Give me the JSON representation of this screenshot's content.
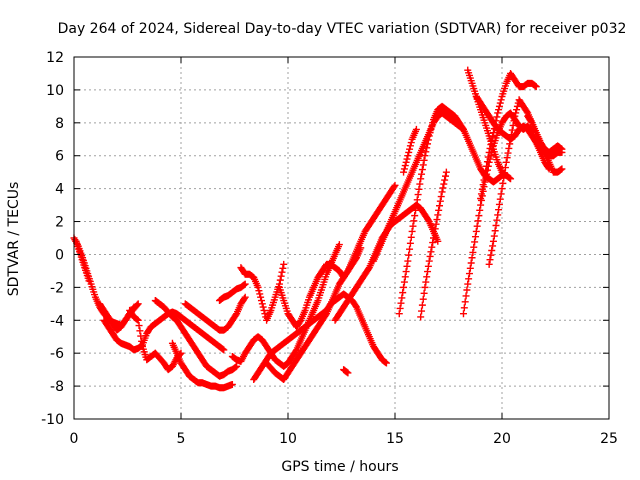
{
  "chart_data": {
    "type": "scatter",
    "title": "Day 264 of 2024, Sidereal Day-to-day VTEC variation (SDTVAR) for receiver p032",
    "xlabel": "GPS time / hours",
    "ylabel": "SDTVAR / TECUs",
    "xlim": [
      0,
      25
    ],
    "ylim": [
      -10,
      12
    ],
    "xticks": [
      "0",
      "5",
      "10",
      "15",
      "20",
      "25"
    ],
    "yticks": [
      "12",
      "10",
      "8",
      "6",
      "4",
      "2",
      "0",
      "-2",
      "-4",
      "-6",
      "-8",
      "-10"
    ],
    "grid": true,
    "marker": "+",
    "color": "#ff0000",
    "series": [
      {
        "x": [
          0.0,
          0.2,
          0.4,
          0.6,
          0.8,
          1.0,
          1.2,
          1.4,
          1.6,
          1.8,
          2.0,
          2.2,
          2.4,
          2.6,
          2.8
        ],
        "y": [
          1.0,
          0.5,
          -0.2,
          -1.0,
          -1.8,
          -2.6,
          -3.2,
          -3.6,
          -3.9,
          -4.1,
          -4.2,
          -4.3,
          -4.0,
          -3.6,
          -3.2
        ]
      },
      {
        "x": [
          1.2,
          1.4,
          1.6,
          1.8,
          2.0,
          2.2,
          2.4,
          2.6,
          2.8,
          3.0
        ],
        "y": [
          -3.0,
          -3.4,
          -3.8,
          -4.2,
          -4.6,
          -4.4,
          -4.0,
          -3.6,
          -3.3,
          -3.0
        ]
      },
      {
        "x": [
          0.1,
          0.3,
          0.5,
          0.7
        ],
        "y": [
          0.8,
          0.0,
          -0.8,
          -1.6
        ]
      },
      {
        "x": [
          1.4,
          1.6,
          1.8,
          2.0,
          2.2,
          2.4,
          2.6,
          2.8,
          3.0,
          3.2,
          3.4,
          3.6,
          3.8,
          4.0,
          4.2,
          4.4,
          4.6,
          4.8,
          5.0,
          5.2,
          5.4,
          5.6,
          5.8,
          6.0,
          6.2,
          6.4,
          6.6,
          6.8,
          7.0
        ],
        "y": [
          -4.0,
          -4.4,
          -4.8,
          -5.2,
          -5.4,
          -5.5,
          -5.6,
          -5.8,
          -5.7,
          -5.5,
          -4.8,
          -4.4,
          -4.2,
          -4.0,
          -3.8,
          -3.6,
          -3.5,
          -3.6,
          -3.8,
          -4.0,
          -4.2,
          -4.4,
          -4.6,
          -4.8,
          -5.0,
          -5.2,
          -5.4,
          -5.6,
          -5.8
        ]
      },
      {
        "x": [
          2.6,
          2.8,
          3.0,
          3.2,
          3.4,
          3.6,
          3.8,
          4.0,
          4.2,
          4.4,
          4.6,
          4.8,
          5.0
        ],
        "y": [
          -3.4,
          -3.8,
          -4.0,
          -5.6,
          -6.4,
          -6.2,
          -6.0,
          -6.3,
          -6.6,
          -7.0,
          -6.8,
          -6.3,
          -6.0
        ]
      },
      {
        "x": [
          3.8,
          4.0,
          4.2,
          4.4,
          4.6,
          4.8,
          5.0,
          5.2,
          5.4,
          5.6,
          5.8,
          6.0,
          6.2,
          6.4,
          6.6,
          6.8,
          7.0,
          7.2,
          7.4,
          7.6
        ],
        "y": [
          -2.8,
          -3.0,
          -3.2,
          -3.5,
          -3.8,
          -4.0,
          -4.4,
          -4.8,
          -5.2,
          -5.6,
          -6.0,
          -6.4,
          -6.8,
          -7.0,
          -7.2,
          -7.4,
          -7.3,
          -7.1,
          -7.0,
          -6.8
        ]
      },
      {
        "x": [
          4.6,
          4.8,
          5.0,
          5.2,
          5.4,
          5.6,
          5.8,
          6.0,
          6.2,
          6.4,
          6.6,
          6.8,
          7.0,
          7.2,
          7.4
        ],
        "y": [
          -5.4,
          -6.0,
          -6.6,
          -7.0,
          -7.4,
          -7.6,
          -7.8,
          -7.8,
          -7.9,
          -8.0,
          -8.0,
          -8.1,
          -8.1,
          -8.0,
          -7.9
        ]
      },
      {
        "x": [
          5.2,
          5.4,
          5.6,
          5.8,
          6.0,
          6.2,
          6.4,
          6.6,
          6.8,
          7.0,
          7.2,
          7.4,
          7.6,
          7.8,
          8.0
        ],
        "y": [
          -3.0,
          -3.2,
          -3.4,
          -3.6,
          -3.8,
          -4.0,
          -4.2,
          -4.4,
          -4.6,
          -4.6,
          -4.4,
          -4.0,
          -3.6,
          -3.0,
          -2.6
        ]
      },
      {
        "x": [
          6.8,
          7.0,
          7.2,
          7.4,
          7.6,
          7.8,
          8.0
        ],
        "y": [
          -2.8,
          -2.6,
          -2.5,
          -2.3,
          -2.1,
          -2.0,
          -1.8
        ]
      },
      {
        "x": [
          7.4,
          7.6,
          7.8,
          8.0,
          8.2,
          8.4,
          8.6,
          8.8,
          9.0,
          9.2,
          9.4,
          9.6,
          9.8,
          10.0,
          10.2,
          10.4,
          10.6,
          10.8,
          11.0,
          11.2,
          11.4,
          11.6,
          11.8,
          12.0,
          12.2,
          12.4
        ],
        "y": [
          -6.2,
          -6.4,
          -6.5,
          -6.0,
          -5.6,
          -5.2,
          -5.0,
          -5.2,
          -5.6,
          -6.0,
          -6.4,
          -6.6,
          -6.8,
          -6.6,
          -6.2,
          -5.8,
          -5.2,
          -4.6,
          -4.0,
          -3.4,
          -2.8,
          -2.0,
          -1.2,
          -0.6,
          0.0,
          0.6
        ]
      },
      {
        "x": [
          7.8,
          8.0,
          8.2,
          8.4,
          8.6,
          8.8,
          9.0,
          9.2,
          9.4,
          9.6,
          9.8
        ],
        "y": [
          -0.8,
          -1.2,
          -1.2,
          -1.4,
          -2.0,
          -3.0,
          -4.0,
          -3.4,
          -2.6,
          -1.8,
          -0.6
        ]
      },
      {
        "x": [
          8.4,
          8.6,
          8.8,
          9.0,
          9.2,
          9.4,
          9.6,
          9.8,
          10.0,
          10.2,
          10.4,
          10.6,
          10.8,
          11.0,
          11.2,
          11.4,
          11.6,
          11.8,
          12.0,
          12.2,
          12.4,
          12.6,
          12.8,
          13.0,
          13.2,
          13.4,
          13.6,
          13.8,
          14.0,
          14.2,
          14.4,
          14.6
        ],
        "y": [
          -7.6,
          -7.2,
          -6.8,
          -6.4,
          -6.0,
          -5.8,
          -5.6,
          -5.4,
          -5.2,
          -5.0,
          -4.8,
          -4.6,
          -4.4,
          -4.2,
          -4.0,
          -3.8,
          -3.6,
          -3.4,
          -3.0,
          -2.8,
          -2.6,
          -2.4,
          -2.6,
          -2.8,
          -3.2,
          -3.8,
          -4.4,
          -5.0,
          -5.6,
          -6.0,
          -6.4,
          -6.6
        ]
      },
      {
        "x": [
          9.0,
          9.2,
          9.4,
          9.6,
          9.8,
          10.0,
          10.2,
          10.4,
          10.6,
          10.8,
          11.0,
          11.2,
          11.4,
          11.6,
          11.8,
          12.0,
          12.2,
          12.4,
          12.6,
          12.8,
          13.0,
          13.2,
          13.4
        ],
        "y": [
          -6.6,
          -6.9,
          -7.2,
          -7.4,
          -7.6,
          -7.2,
          -6.8,
          -6.4,
          -6.0,
          -5.6,
          -5.2,
          -4.8,
          -4.4,
          -4.0,
          -3.6,
          -3.0,
          -2.4,
          -1.8,
          -1.4,
          -1.0,
          -0.6,
          -0.2,
          0.4
        ]
      },
      {
        "x": [
          9.6,
          9.8,
          10.0,
          10.2,
          10.4,
          10.6,
          10.8,
          11.0,
          11.2,
          11.4,
          11.6,
          11.8,
          12.0,
          12.2,
          12.4,
          12.6,
          12.8,
          13.0,
          13.2,
          13.4,
          13.6,
          13.8,
          14.0,
          14.2,
          14.4,
          14.6,
          14.8,
          15.0
        ],
        "y": [
          -2.0,
          -2.8,
          -3.6,
          -4.0,
          -4.4,
          -4.0,
          -3.4,
          -2.6,
          -2.0,
          -1.4,
          -1.0,
          -0.6,
          -0.6,
          -0.8,
          -1.0,
          -1.4,
          -1.0,
          -0.4,
          0.2,
          0.8,
          1.4,
          1.8,
          2.2,
          2.6,
          3.0,
          3.4,
          3.8,
          4.2
        ]
      },
      {
        "x": [
          12.2,
          12.4,
          12.6,
          12.8,
          13.0,
          13.2,
          13.4,
          13.6,
          13.8,
          14.0,
          14.2,
          14.4,
          14.6,
          14.8,
          15.0,
          15.2,
          15.4,
          15.6,
          15.8,
          16.0,
          16.2,
          16.4,
          16.6,
          16.8,
          17.0
        ],
        "y": [
          -4.0,
          -3.6,
          -3.2,
          -2.8,
          -2.4,
          -2.0,
          -1.6,
          -1.2,
          -0.8,
          -0.2,
          0.4,
          1.0,
          1.4,
          1.8,
          2.0,
          2.2,
          2.4,
          2.6,
          2.8,
          3.0,
          2.8,
          2.4,
          2.0,
          1.4,
          0.8
        ]
      },
      {
        "x": [
          12.6,
          12.8
        ],
        "y": [
          -7.0,
          -7.2
        ]
      },
      {
        "x": [
          14.0,
          14.2,
          14.4,
          14.6,
          14.8,
          15.0,
          15.2,
          15.4,
          15.6,
          15.8,
          16.0,
          16.2,
          16.4,
          16.6,
          16.8,
          17.0,
          17.2,
          17.4,
          17.6,
          17.8,
          18.0,
          18.2
        ],
        "y": [
          -0.4,
          0.2,
          0.8,
          1.4,
          2.0,
          2.6,
          3.2,
          3.8,
          4.4,
          5.0,
          5.6,
          6.2,
          6.8,
          7.4,
          8.0,
          8.4,
          8.6,
          8.4,
          8.2,
          8.0,
          7.8,
          7.6
        ]
      },
      {
        "x": [
          15.2,
          15.4,
          15.6,
          15.8,
          16.0,
          16.2,
          16.4,
          16.6,
          16.8,
          17.0,
          17.2,
          17.4,
          17.6,
          17.8,
          18.0,
          18.2,
          18.4,
          18.6,
          18.8,
          19.0,
          19.2,
          19.4,
          19.6,
          19.8,
          20.0
        ],
        "y": [
          -3.6,
          -2.0,
          -0.4,
          1.4,
          3.0,
          4.6,
          6.0,
          7.2,
          8.2,
          8.8,
          9.0,
          8.8,
          8.6,
          8.4,
          8.0,
          7.6,
          7.0,
          6.4,
          5.8,
          5.2,
          4.8,
          4.6,
          4.4,
          4.6,
          4.8
        ]
      },
      {
        "x": [
          15.4,
          15.6,
          15.8,
          16.0
        ],
        "y": [
          5.0,
          6.0,
          7.0,
          7.6
        ]
      },
      {
        "x": [
          16.2,
          16.4,
          16.6,
          16.8,
          17.0,
          17.2,
          17.4
        ],
        "y": [
          -3.8,
          -2.0,
          -0.4,
          1.0,
          2.4,
          3.8,
          5.0
        ]
      },
      {
        "x": [
          18.2,
          18.4,
          18.6,
          18.8,
          19.0,
          19.2,
          19.4,
          19.6,
          19.8,
          20.0,
          20.2,
          20.4,
          20.6,
          20.8,
          21.0,
          21.2,
          21.4,
          21.6,
          21.8,
          22.0,
          22.2
        ],
        "y": [
          -3.6,
          -1.8,
          -0.2,
          1.4,
          3.0,
          4.4,
          5.6,
          6.6,
          7.4,
          8.0,
          8.4,
          8.6,
          8.2,
          7.8,
          7.6,
          7.8,
          7.4,
          6.8,
          6.2,
          5.6,
          5.2
        ]
      },
      {
        "x": [
          18.4,
          18.6,
          18.8,
          19.0,
          19.2,
          19.4,
          19.6,
          19.8,
          20.0,
          20.2,
          20.4
        ],
        "y": [
          11.2,
          10.4,
          9.6,
          8.8,
          8.0,
          7.2,
          6.4,
          5.6,
          5.0,
          4.8,
          4.6
        ]
      },
      {
        "x": [
          18.8,
          19.0,
          19.2,
          19.4,
          19.6,
          19.8,
          20.0,
          20.2,
          20.4,
          20.6,
          20.8,
          21.0,
          21.2,
          21.4,
          21.6,
          21.8,
          22.0,
          22.2,
          22.4,
          22.6,
          22.8
        ],
        "y": [
          9.6,
          9.2,
          8.8,
          8.4,
          8.0,
          7.6,
          7.4,
          7.2,
          7.0,
          7.2,
          7.6,
          7.8,
          7.6,
          7.2,
          6.8,
          6.4,
          6.2,
          6.0,
          6.0,
          6.2,
          6.2
        ]
      },
      {
        "x": [
          19.0,
          19.2,
          19.4,
          19.6,
          19.8,
          20.0,
          20.2,
          20.4,
          20.6,
          20.8,
          21.0,
          21.2,
          21.4,
          21.6
        ],
        "y": [
          3.4,
          4.8,
          6.2,
          7.4,
          8.6,
          9.6,
          10.4,
          11.0,
          10.6,
          10.2,
          10.2,
          10.4,
          10.4,
          10.2
        ]
      },
      {
        "x": [
          19.4,
          19.6,
          19.8,
          20.0,
          20.2,
          20.4,
          20.6,
          20.8,
          21.0,
          21.2,
          21.4,
          21.6,
          21.8,
          22.0,
          22.2,
          22.4,
          22.6,
          22.8
        ],
        "y": [
          -0.6,
          0.8,
          2.4,
          4.0,
          5.6,
          7.0,
          8.4,
          9.4,
          9.0,
          8.6,
          8.0,
          7.4,
          6.8,
          6.2,
          5.6,
          5.0,
          5.0,
          5.2
        ]
      },
      {
        "x": [
          21.2,
          21.4,
          21.6,
          21.8,
          22.0,
          22.2,
          22.4,
          22.6,
          22.8
        ],
        "y": [
          8.4,
          8.0,
          7.4,
          6.8,
          6.4,
          6.2,
          6.4,
          6.6,
          6.4
        ]
      }
    ]
  }
}
